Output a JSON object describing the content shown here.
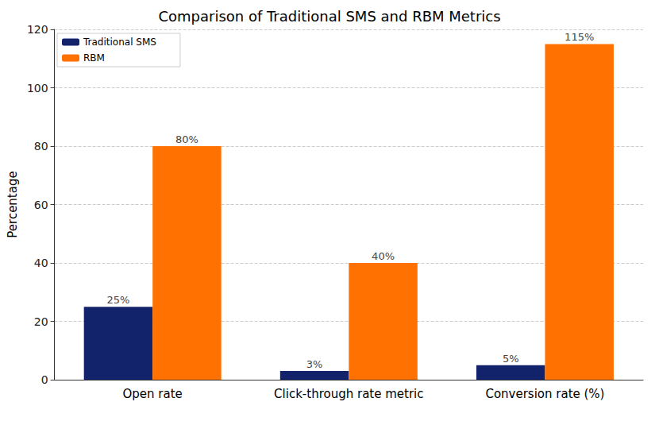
{
  "chart_data": {
    "type": "bar",
    "title": "Comparison of Traditional SMS and RBM Metrics",
    "y_label": "Percentage",
    "categories": [
      "Open rate",
      "Click-through rate metric",
      "Conversion rate (%)"
    ],
    "series": [
      {
        "name": "Traditional SMS",
        "color": "#13236b",
        "values": [
          25,
          3,
          5
        ],
        "value_labels": [
          "25%",
          "3%",
          "5%"
        ]
      },
      {
        "name": "RBM",
        "color": "#ff7100",
        "values": [
          80,
          40,
          115
        ],
        "value_labels": [
          "80%",
          "40%",
          "115%"
        ]
      }
    ],
    "ylim": [
      0,
      120
    ],
    "yticks": [
      0,
      20,
      40,
      60,
      80,
      100,
      120
    ],
    "grid": true,
    "legend": "upper left",
    "data_labels": true
  }
}
